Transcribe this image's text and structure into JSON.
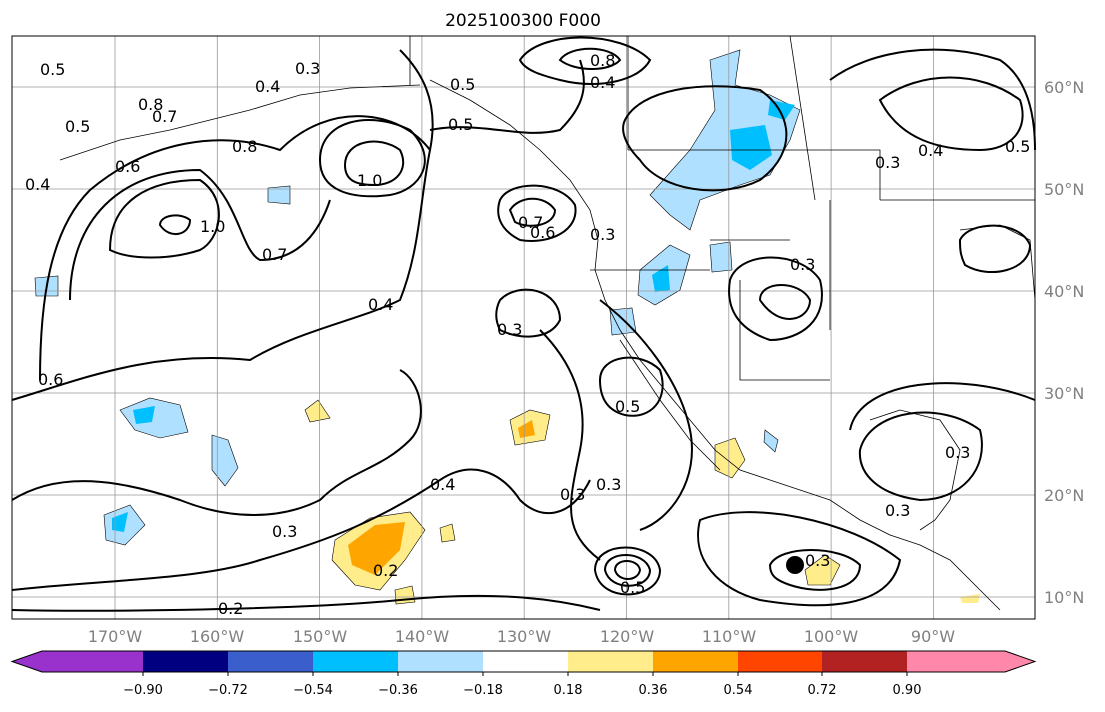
{
  "title": "2025100300 F000",
  "lon_ticks": [
    "170°W",
    "160°W",
    "150°W",
    "140°W",
    "130°W",
    "120°W",
    "110°W",
    "100°W",
    "90°W"
  ],
  "lat_ticks": [
    "60°N",
    "50°N",
    "40°N",
    "30°N",
    "20°N",
    "10°N"
  ],
  "contour_labels": [
    "0.5",
    "0.3",
    "0.4",
    "0.8",
    "0.7",
    "0.5",
    "0.8",
    "0.4",
    "0.6",
    "1.0",
    "1.0",
    "0.7",
    "0.5",
    "0.7",
    "0.6",
    "0.3",
    "0.8",
    "0.4",
    "0.3",
    "0.4",
    "0.5",
    "0.3",
    "0.6",
    "0.3",
    "0.4",
    "0.4",
    "0.3",
    "0.5",
    "0.3",
    "0.2",
    "0.3",
    "0.2",
    "0.5",
    "0.3",
    "0.3",
    "0.3",
    "0.5"
  ],
  "colorbar": {
    "ticks": [
      "−0.90",
      "−0.72",
      "−0.54",
      "−0.36",
      "−0.18",
      "0.18",
      "0.36",
      "0.54",
      "0.72",
      "0.90"
    ],
    "colors": [
      "#9932cc",
      "#000080",
      "#3a5fcd",
      "#00bfff",
      "#b0e0ff",
      "#ffffff",
      "#ffec8b",
      "#ffa500",
      "#ff4500",
      "#b22222",
      "#ff88aa"
    ]
  }
}
